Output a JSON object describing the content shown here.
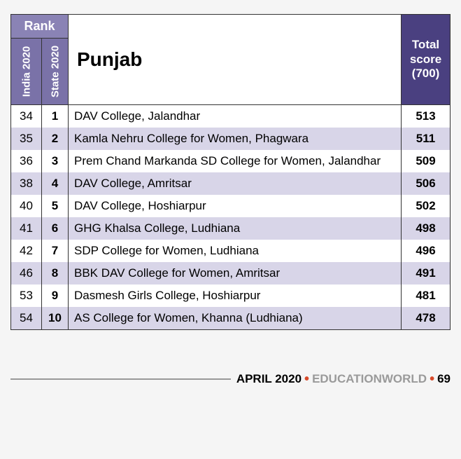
{
  "header": {
    "rank_label": "Rank",
    "india_label": "India 2020",
    "state_label": "State 2020",
    "region": "Punjab",
    "score_line1": "Total",
    "score_line2": "score",
    "score_line3": "(700)"
  },
  "colors": {
    "rank_spanner_bg": "#8a83b5",
    "vert_header_bg": "#7a72a8",
    "score_header_bg": "#4a4080",
    "stripe_bg": "#d8d5e8",
    "border": "#333333"
  },
  "rows": [
    {
      "india": "34",
      "state": "1",
      "name": "DAV College, Jalandhar",
      "score": "513"
    },
    {
      "india": "35",
      "state": "2",
      "name": "Kamla Nehru College for Women, Phagwara",
      "score": "511"
    },
    {
      "india": "36",
      "state": "3",
      "name": "Prem Chand Markanda SD College for Women, Jalandhar",
      "score": "509"
    },
    {
      "india": "38",
      "state": "4",
      "name": "DAV College, Amritsar",
      "score": "506"
    },
    {
      "india": "40",
      "state": "5",
      "name": "DAV College, Hoshiarpur",
      "score": "502"
    },
    {
      "india": "41",
      "state": "6",
      "name": "GHG Khalsa College, Ludhiana",
      "score": "498"
    },
    {
      "india": "42",
      "state": "7",
      "name": "SDP College for Women, Ludhiana",
      "score": "496"
    },
    {
      "india": "46",
      "state": "8",
      "name": "BBK DAV College for Women, Amritsar",
      "score": "491"
    },
    {
      "india": "53",
      "state": "9",
      "name": "Dasmesh Girls College, Hoshiarpur",
      "score": "481"
    },
    {
      "india": "54",
      "state": "10",
      "name": "AS College for Women, Khanna (Ludhiana)",
      "score": "478"
    }
  ],
  "footer": {
    "month": "APRIL 2020",
    "magazine": "EDUCATIONWORLD",
    "page": "69"
  }
}
